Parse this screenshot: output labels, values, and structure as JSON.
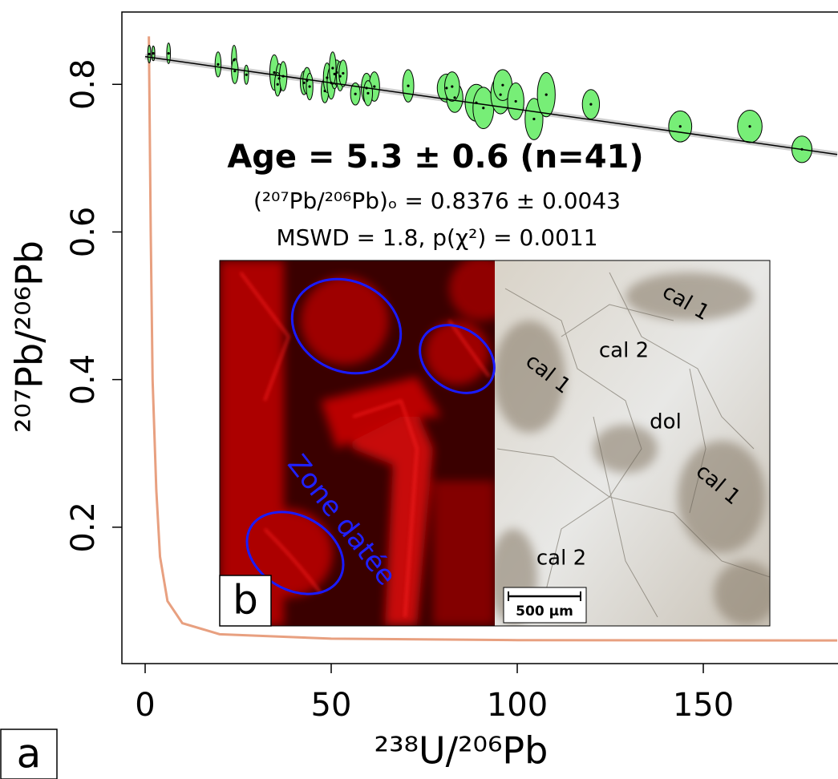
{
  "chart_data": {
    "type": "scatter",
    "title": "Age = 5.3 ± 0.6 (n=41)",
    "subtitle": "(²⁰⁷Pb/²⁰⁶Pb)ₒ = 0.8376 ± 0.0043",
    "subtitle2": "MSWD = 1.8, p(χ²) = 0.0011",
    "xlabel": "²³⁸U/²⁰⁶Pb",
    "ylabel": "²⁰⁷Pb/²⁰⁶Pb",
    "panel_label": "a",
    "color": "#77ee77",
    "x": [
      1.1,
      2.2,
      6.3,
      19.6,
      23.9,
      24.1,
      27.2,
      34.7,
      36.0,
      35.6,
      42.7,
      43.5,
      44.2,
      48.3,
      48.9,
      50.0,
      50.9,
      51.5,
      52.4,
      53.2,
      56.5,
      59.5,
      61.6,
      70.7,
      81.0,
      83.2,
      89.0,
      90.9,
      95.5,
      96.1,
      99.6,
      104.5,
      107.8,
      119.8,
      143.8,
      162.5,
      176.5,
      37.1,
      59.9,
      50.4,
      82.5
    ],
    "y": [
      0.841,
      0.842,
      0.842,
      0.827,
      0.833,
      0.818,
      0.813,
      0.816,
      0.808,
      0.8,
      0.802,
      0.805,
      0.797,
      0.791,
      0.809,
      0.802,
      0.814,
      0.816,
      0.811,
      0.815,
      0.787,
      0.795,
      0.797,
      0.798,
      0.795,
      0.782,
      0.775,
      0.768,
      0.786,
      0.799,
      0.777,
      0.753,
      0.786,
      0.773,
      0.743,
      0.743,
      0.712,
      0.811,
      0.788,
      0.822,
      0.797
    ],
    "x_err": [
      0.4,
      0.4,
      0.5,
      0.8,
      0.7,
      0.9,
      0.6,
      1.2,
      0.9,
      0.8,
      1.0,
      1.1,
      0.9,
      1.0,
      1.0,
      1.1,
      1.0,
      1.2,
      1.0,
      1.1,
      1.3,
      1.4,
      1.4,
      1.5,
      2.5,
      2.2,
      3.0,
      2.8,
      2.6,
      2.5,
      2.2,
      2.4,
      2.4,
      2.3,
      3.1,
      3.3,
      2.7,
      1.0,
      1.2,
      0.9,
      2.0
    ],
    "y_err": [
      0.012,
      0.01,
      0.014,
      0.017,
      0.02,
      0.017,
      0.013,
      0.024,
      0.02,
      0.016,
      0.016,
      0.018,
      0.018,
      0.016,
      0.02,
      0.022,
      0.02,
      0.017,
      0.02,
      0.018,
      0.015,
      0.02,
      0.02,
      0.022,
      0.019,
      0.02,
      0.025,
      0.028,
      0.026,
      0.021,
      0.025,
      0.028,
      0.03,
      0.02,
      0.021,
      0.022,
      0.018,
      0.02,
      0.017,
      0.022,
      0.02
    ],
    "regression": {
      "x": [
        0,
        186
      ],
      "y": [
        0.8376,
        0.705
      ],
      "color": "#000000"
    },
    "concordia": {
      "x": [
        1.0,
        1.5,
        2,
        3,
        4,
        6,
        10,
        20,
        50,
        100,
        186
      ],
      "y": [
        0.865,
        0.6,
        0.4,
        0.25,
        0.16,
        0.1,
        0.07,
        0.055,
        0.049,
        0.047,
        0.0465
      ],
      "color": "#e8a080"
    },
    "xlim": [
      -6.25,
      186.2
    ],
    "ylim": [
      0.0152,
      0.898
    ],
    "xticks": [
      0,
      50,
      100,
      150
    ],
    "yticks": [
      0.2,
      0.4,
      0.6,
      0.8
    ]
  },
  "inset": {
    "label": "b",
    "zone_label": "Zone datée",
    "scale_bar": "500 µm",
    "annotations": [
      "cal 1",
      "cal 2",
      "cal 1",
      "dol",
      "cal 1",
      "cal 2"
    ]
  }
}
